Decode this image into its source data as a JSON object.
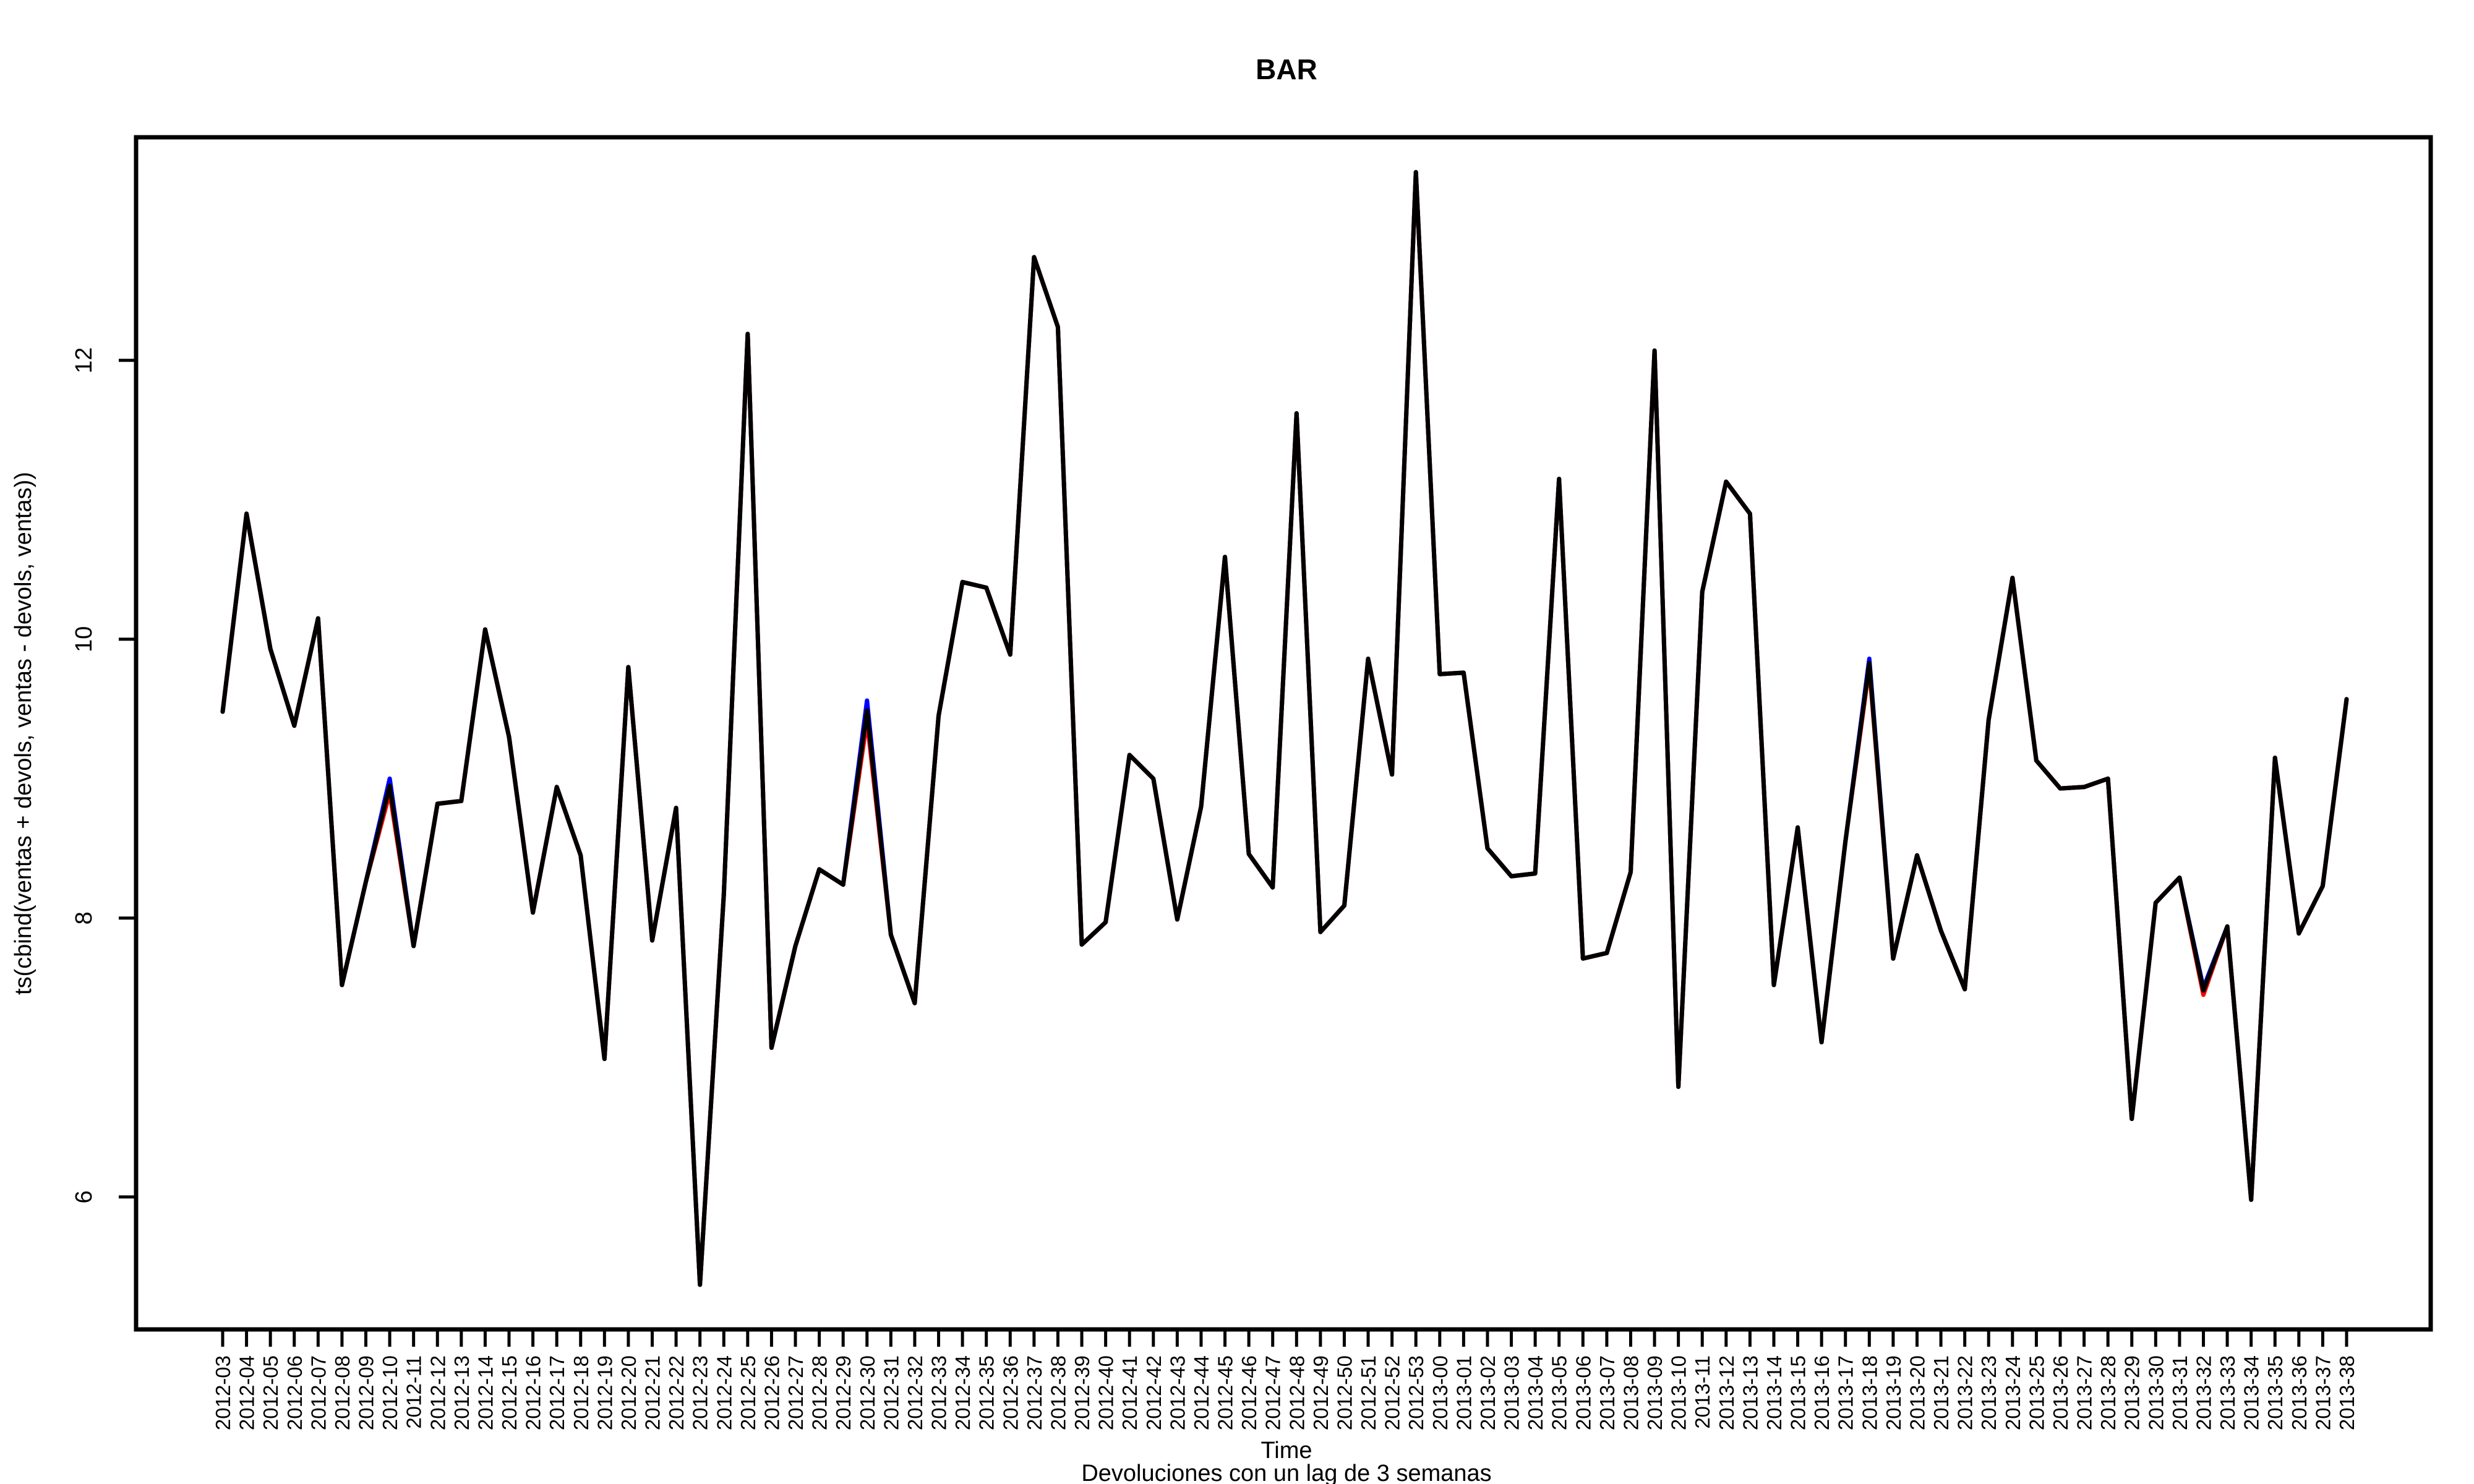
{
  "chart_data": {
    "type": "line",
    "title": "BAR",
    "xlabel": "Time",
    "ylabel": "ts(cbind(ventas + devols, ventas - devols, ventas))",
    "subtitle": "Devoluciones con un lag de 3 semanas",
    "ylim": [
      5.05,
      13.6
    ],
    "yticks": [
      6,
      8,
      10,
      12
    ],
    "grid": false,
    "categories": [
      "2012-03",
      "2012-04",
      "2012-05",
      "2012-06",
      "2012-07",
      "2012-08",
      "2012-09",
      "2012-10",
      "2012-11",
      "2012-12",
      "2012-13",
      "2012-14",
      "2012-15",
      "2012-16",
      "2012-17",
      "2012-18",
      "2012-19",
      "2012-20",
      "2012-21",
      "2012-22",
      "2012-23",
      "2012-24",
      "2012-25",
      "2012-26",
      "2012-27",
      "2012-28",
      "2012-29",
      "2012-30",
      "2012-31",
      "2012-32",
      "2012-33",
      "2012-34",
      "2012-35",
      "2012-36",
      "2012-37",
      "2012-38",
      "2012-39",
      "2012-40",
      "2012-41",
      "2012-42",
      "2012-43",
      "2012-44",
      "2012-45",
      "2012-46",
      "2012-47",
      "2012-48",
      "2012-49",
      "2012-50",
      "2012-51",
      "2012-52",
      "2012-53",
      "2013-00",
      "2013-01",
      "2013-02",
      "2013-03",
      "2013-04",
      "2013-05",
      "2013-06",
      "2013-07",
      "2013-08",
      "2013-09",
      "2013-10",
      "2013-11",
      "2013-12",
      "2013-13",
      "2013-14",
      "2013-15",
      "2013-16",
      "2013-17",
      "2013-18",
      "2013-19",
      "2013-20",
      "2013-21",
      "2013-22",
      "2013-23",
      "2013-24",
      "2013-25",
      "2013-26",
      "2013-27",
      "2013-28",
      "2013-29",
      "2013-30",
      "2013-31",
      "2013-32",
      "2013-33",
      "2013-34",
      "2013-35",
      "2013-36",
      "2013-37",
      "2013-38"
    ],
    "series": [
      {
        "color": "#0000ff",
        "values": [
          9.48,
          10.9,
          9.93,
          9.38,
          10.15,
          7.52,
          8.26,
          9.0,
          7.8,
          8.82,
          8.84,
          10.07,
          9.3,
          8.04,
          8.94,
          8.45,
          6.99,
          9.8,
          7.84,
          8.79,
          5.37,
          8.17,
          12.19,
          7.07,
          7.8,
          8.35,
          8.24,
          9.56,
          7.88,
          7.39,
          9.45,
          10.41,
          10.37,
          9.89,
          12.74,
          12.24,
          7.81,
          7.97,
          9.17,
          9.0,
          7.99,
          8.8,
          10.59,
          8.46,
          8.22,
          11.62,
          7.9,
          8.09,
          9.86,
          9.03,
          13.35,
          9.75,
          9.76,
          8.5,
          8.3,
          8.32,
          11.15,
          7.71,
          7.75,
          8.33,
          12.07,
          6.79,
          10.34,
          11.13,
          10.9,
          7.52,
          8.65,
          7.11,
          8.55,
          9.86,
          7.71,
          8.45,
          7.91,
          7.49,
          9.42,
          10.44,
          9.13,
          8.93,
          8.94,
          9.0,
          6.56,
          8.11,
          8.29,
          7.5,
          7.94,
          5.98,
          9.15,
          7.89,
          8.23,
          9.57
        ]
      },
      {
        "color": "#ff0000",
        "values": [
          9.48,
          10.9,
          9.93,
          9.38,
          10.15,
          7.52,
          8.26,
          8.9,
          7.8,
          8.82,
          8.84,
          10.07,
          9.3,
          8.04,
          8.94,
          8.45,
          6.99,
          9.8,
          7.84,
          8.79,
          5.37,
          8.17,
          12.19,
          7.07,
          7.8,
          8.35,
          8.24,
          9.42,
          7.88,
          7.39,
          9.45,
          10.41,
          10.37,
          9.89,
          12.74,
          12.24,
          7.81,
          7.97,
          9.17,
          9.0,
          7.99,
          8.8,
          10.59,
          8.46,
          8.22,
          11.62,
          7.9,
          8.09,
          9.86,
          9.03,
          13.35,
          9.75,
          9.76,
          8.5,
          8.3,
          8.32,
          11.15,
          7.71,
          7.75,
          8.33,
          12.07,
          6.79,
          10.34,
          11.13,
          10.9,
          7.52,
          8.65,
          7.11,
          8.55,
          9.8,
          7.71,
          8.45,
          7.91,
          7.49,
          9.42,
          10.44,
          9.13,
          8.93,
          8.94,
          9.0,
          6.56,
          8.11,
          8.29,
          7.45,
          7.94,
          5.98,
          9.15,
          7.89,
          8.23,
          9.57
        ]
      },
      {
        "color": "#000000",
        "values": [
          9.48,
          10.9,
          9.93,
          9.38,
          10.15,
          7.52,
          8.26,
          8.95,
          7.8,
          8.82,
          8.84,
          10.07,
          9.3,
          8.04,
          8.94,
          8.45,
          6.99,
          9.8,
          7.84,
          8.79,
          5.37,
          8.17,
          12.19,
          7.07,
          7.8,
          8.35,
          8.24,
          9.49,
          7.88,
          7.39,
          9.45,
          10.41,
          10.37,
          9.89,
          12.74,
          12.24,
          7.81,
          7.97,
          9.17,
          9.0,
          7.99,
          8.8,
          10.59,
          8.46,
          8.22,
          11.62,
          7.9,
          8.09,
          9.86,
          9.03,
          13.35,
          9.75,
          9.76,
          8.5,
          8.3,
          8.32,
          11.15,
          7.71,
          7.75,
          8.33,
          12.07,
          6.79,
          10.34,
          11.13,
          10.9,
          7.52,
          8.65,
          7.11,
          8.55,
          9.83,
          7.71,
          8.45,
          7.91,
          7.49,
          9.42,
          10.44,
          9.13,
          8.93,
          8.94,
          9.0,
          6.56,
          8.11,
          8.29,
          7.48,
          7.94,
          5.98,
          9.15,
          7.89,
          8.23,
          9.57
        ]
      }
    ]
  }
}
